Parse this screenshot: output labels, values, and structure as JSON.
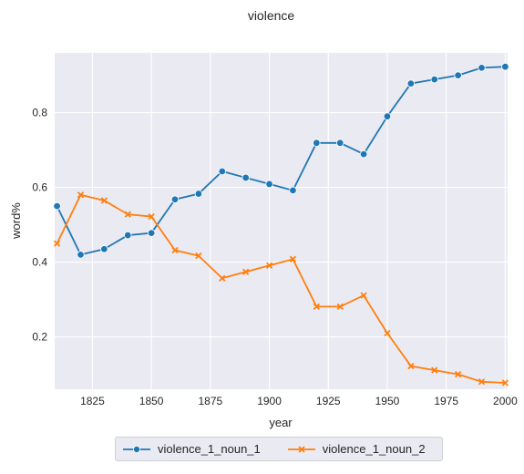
{
  "chart_data": {
    "type": "line",
    "title": "violence",
    "xlabel": "year",
    "ylabel": "word%",
    "xlim": [
      1809,
      2001
    ],
    "ylim": [
      0.06,
      0.96
    ],
    "xticks": [
      "1825",
      "1850",
      "1875",
      "1900",
      "1925",
      "1950",
      "1975",
      "2000"
    ],
    "yticks": [
      "0.2",
      "0.4",
      "0.6",
      "0.8"
    ],
    "grid": true,
    "legend_position": "bottom-center",
    "x": [
      1810,
      1820,
      1830,
      1840,
      1850,
      1860,
      1870,
      1880,
      1890,
      1900,
      1910,
      1920,
      1930,
      1940,
      1950,
      1960,
      1970,
      1980,
      1990,
      2000
    ],
    "series": [
      {
        "name": "violence_1_noun_1",
        "color": "#1f77b4",
        "marker": "circle",
        "values": [
          0.55,
          0.42,
          0.435,
          0.472,
          0.478,
          0.568,
          0.583,
          0.643,
          0.626,
          0.609,
          0.592,
          0.719,
          0.719,
          0.689,
          0.79,
          0.878,
          0.889,
          0.9,
          0.92,
          0.923
        ]
      },
      {
        "name": "violence_1_noun_2",
        "color": "#ff7f0e",
        "marker": "x",
        "values": [
          0.45,
          0.58,
          0.565,
          0.528,
          0.522,
          0.432,
          0.417,
          0.357,
          0.374,
          0.391,
          0.408,
          0.281,
          0.281,
          0.311,
          0.21,
          0.122,
          0.111,
          0.1,
          0.08,
          0.077
        ]
      }
    ]
  }
}
